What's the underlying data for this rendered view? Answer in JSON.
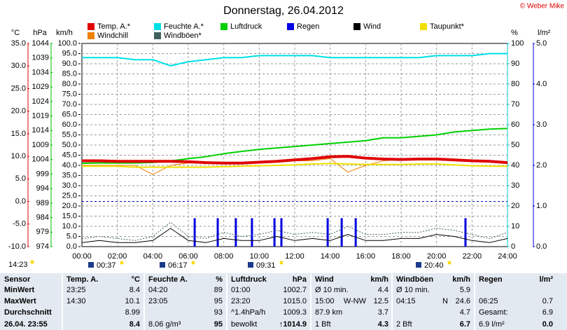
{
  "chart_data": {
    "type": "line",
    "title": "Donnerstag, 26.04.2012",
    "credit": "© Weber Mike",
    "axis_titles": {
      "y": "°C",
      "y2": "hPa",
      "y3": "km/h",
      "y4": "%",
      "y5": "l/m²"
    },
    "x": [
      0,
      1,
      2,
      3,
      4,
      5,
      6,
      7,
      8,
      9,
      10,
      11,
      12,
      13,
      14,
      15,
      16,
      17,
      18,
      19,
      20,
      21,
      22,
      23,
      24
    ],
    "xlim": [
      0,
      24
    ],
    "xticks": [
      {
        "value": 0,
        "label": "00:00"
      },
      {
        "value": 2,
        "label": "02:00"
      },
      {
        "value": 4,
        "label": "04:00"
      },
      {
        "value": 6,
        "label": "06:00"
      },
      {
        "value": 8,
        "label": "08:00"
      },
      {
        "value": 10,
        "label": "10:00"
      },
      {
        "value": 12,
        "label": "12:00"
      },
      {
        "value": 14,
        "label": "14:00"
      },
      {
        "value": 16,
        "label": "16:00"
      },
      {
        "value": 18,
        "label": "18:00"
      },
      {
        "value": 20,
        "label": "20:00"
      },
      {
        "value": 22,
        "label": "22:00"
      },
      {
        "value": 24,
        "label": "24:00"
      }
    ],
    "ylim": [
      -10,
      35
    ],
    "yticks": [
      {
        "value": 35,
        "label": "35.0"
      },
      {
        "value": 30,
        "label": "30.0"
      },
      {
        "value": 25,
        "label": "25.0"
      },
      {
        "value": 20,
        "label": "20.0"
      },
      {
        "value": 15,
        "label": "15.0"
      },
      {
        "value": 10,
        "label": "10.0"
      },
      {
        "value": 5,
        "label": "5.0"
      },
      {
        "value": 0,
        "label": "0.0"
      },
      {
        "value": -5,
        "label": "-5.0"
      },
      {
        "value": -10,
        "label": "-10.0"
      }
    ],
    "y2lim": [
      974,
      1044
    ],
    "y2ticks": [
      1044,
      1039,
      1034,
      1029,
      1024,
      1019,
      1014,
      1009,
      1004,
      999,
      994,
      989,
      984,
      979,
      974
    ],
    "y3lim": [
      0,
      100
    ],
    "y3ticks": [
      {
        "value": 100,
        "label": "100.0"
      },
      {
        "value": 95,
        "label": "95.0"
      },
      {
        "value": 90,
        "label": "90.0"
      },
      {
        "value": 85,
        "label": "85.0"
      },
      {
        "value": 80,
        "label": "80.0"
      },
      {
        "value": 75,
        "label": "75.0"
      },
      {
        "value": 70,
        "label": "70.0"
      },
      {
        "value": 65,
        "label": "65.0"
      },
      {
        "value": 60,
        "label": "60.0"
      },
      {
        "value": 55,
        "label": "55.0"
      },
      {
        "value": 50,
        "label": "50.0"
      },
      {
        "value": 45,
        "label": "45.0"
      },
      {
        "value": 40,
        "label": "40.0"
      },
      {
        "value": 35,
        "label": "35.0"
      },
      {
        "value": 30,
        "label": "30.0"
      },
      {
        "value": 25,
        "label": "25.0"
      },
      {
        "value": 20,
        "label": "20.0"
      },
      {
        "value": 15,
        "label": "15.0"
      },
      {
        "value": 10,
        "label": "10.0"
      },
      {
        "value": 5,
        "label": "5.0"
      },
      {
        "value": 0,
        "label": "0.0"
      }
    ],
    "y4lim": [
      0,
      100
    ],
    "y4ticks": [
      100,
      90,
      80,
      70,
      60,
      50,
      40,
      30,
      20,
      10,
      0
    ],
    "y5lim": [
      0,
      5
    ],
    "y5ticks": [
      {
        "value": 5,
        "label": "5.0"
      },
      {
        "value": 4,
        "label": "4.0"
      },
      {
        "value": 3,
        "label": "3.0"
      },
      {
        "value": 2,
        "label": "2.0"
      },
      {
        "value": 1,
        "label": "1.0"
      },
      {
        "value": 0,
        "label": "0.0"
      }
    ],
    "grid": true,
    "series": [
      {
        "name": "Temp. A.*",
        "color": "#e00000",
        "axis": "y",
        "values": [
          9.0,
          9.0,
          8.9,
          8.9,
          8.9,
          8.9,
          8.8,
          8.6,
          8.5,
          8.5,
          8.7,
          8.9,
          9.2,
          9.5,
          9.9,
          10.0,
          9.6,
          9.4,
          9.3,
          9.4,
          9.4,
          9.2,
          9.0,
          8.9,
          8.6
        ]
      },
      {
        "name": "Feuchte A.*",
        "color": "#00e0e8",
        "axis": "y4",
        "values": [
          93,
          93,
          93,
          92,
          92,
          89,
          91,
          92,
          93,
          93,
          94,
          94,
          94,
          94,
          93,
          93,
          93,
          93,
          93,
          93,
          94,
          94,
          94,
          95,
          95
        ]
      },
      {
        "name": "Luftdruck",
        "color": "#00d000",
        "axis": "y2",
        "values": [
          1002.7,
          1002.8,
          1002.8,
          1002.8,
          1003.0,
          1003.5,
          1004.3,
          1005.0,
          1006.0,
          1006.8,
          1007.5,
          1008.0,
          1008.5,
          1009.0,
          1009.5,
          1010.0,
          1010.5,
          1011.5,
          1011.5,
          1012.0,
          1012.5,
          1013.5,
          1014.0,
          1014.5,
          1014.7
        ]
      },
      {
        "name": "Regen",
        "color": "#0000e0",
        "axis": "y5",
        "type": "bar",
        "x": [
          6.36,
          7.66,
          8.68,
          9.59,
          10.86,
          11.25,
          13.86,
          14.65,
          15.44,
          21.63
        ],
        "values": [
          0.7,
          0.7,
          0.7,
          0.7,
          0.7,
          0.7,
          0.7,
          0.7,
          0.7,
          0.7
        ]
      },
      {
        "name": "Wind",
        "color": "#000000",
        "axis": "y3",
        "values": [
          2,
          3,
          2,
          2,
          3,
          9,
          3,
          2,
          4,
          3,
          3,
          5,
          3,
          4,
          3,
          6,
          3,
          3,
          4,
          4,
          6,
          5,
          3,
          2,
          4
        ]
      },
      {
        "name": "Taupunkt*",
        "color": "#f0e000",
        "axis": "y",
        "values": [
          7.8,
          7.8,
          7.8,
          7.6,
          7.6,
          7.6,
          7.6,
          7.6,
          7.7,
          7.8,
          7.9,
          8.0,
          8.1,
          8.3,
          8.4,
          8.3,
          8.2,
          8.2,
          8.2,
          8.3,
          8.3,
          8.1,
          7.9,
          7.8,
          7.8
        ]
      },
      {
        "name": "Windchill",
        "color": "#f08000",
        "axis": "y",
        "values": [
          8.0,
          8.0,
          8.0,
          8.0,
          6.0,
          8.0,
          8.5,
          8.5,
          8.5,
          8.5,
          8.7,
          8.9,
          9.0,
          9.0,
          9.5,
          6.5,
          8.0,
          9.0,
          9.3,
          9.4,
          9.4,
          9.2,
          9.0,
          8.9,
          8.6
        ]
      },
      {
        "name": "Windböen*",
        "color": "#406060",
        "axis": "y3",
        "values": [
          4,
          5,
          4,
          3,
          5,
          12,
          5,
          4,
          7,
          5,
          6,
          8,
          6,
          7,
          6,
          10,
          6,
          6,
          7,
          7,
          9,
          8,
          6,
          4,
          7
        ]
      }
    ],
    "annotations": [
      "14:23",
      "00:37",
      "06:17",
      "09:31",
      "20:40"
    ]
  },
  "table": {
    "header": [
      [
        "Sensor"
      ],
      [
        "Temp. A.",
        "°C"
      ],
      [
        "Feuchte A.",
        "%"
      ],
      [
        "Luftdruck",
        "hPa"
      ],
      [
        "Wind",
        "km/h"
      ],
      [
        "Windböen",
        "km/h"
      ],
      [
        "Regen",
        "l/m²"
      ]
    ],
    "rows": [
      [
        [
          "MinWert"
        ],
        [
          "23:25",
          "8.4"
        ],
        [
          "04:20",
          "89"
        ],
        [
          "01:00",
          "1002.7"
        ],
        [
          "Ø 10 min.",
          "4.4"
        ],
        [
          "Ø 10 min.",
          "5.9"
        ],
        []
      ],
      [
        [
          "MaxWert"
        ],
        [
          "14:30",
          "10.1"
        ],
        [
          "23:05",
          "95"
        ],
        [
          "23:20",
          "1015.0"
        ],
        [
          "15:00",
          "W-NW",
          "12.5"
        ],
        [
          "04:15",
          "N",
          "24.6"
        ],
        [
          "06:25",
          "0.7"
        ]
      ],
      [
        [
          "Durchschnitt"
        ],
        [
          "8.99"
        ],
        [
          "93"
        ],
        [
          "^1.4hPa/h",
          "1009.3"
        ],
        [
          "87.9 km",
          "3.7"
        ],
        [
          "4.7"
        ],
        [
          "Gesamt:",
          "6.9"
        ]
      ],
      [
        [
          "26.04. 23:55"
        ],
        [
          "8.4"
        ],
        [
          "8.06 g/m³",
          "95"
        ],
        [
          "bewolkt",
          "↑1014.9"
        ],
        [
          "1 Bft",
          "4.3"
        ],
        [
          "2 Bft",
          "6.7"
        ],
        [
          "6.9 l/m²",
          "0.0"
        ]
      ]
    ]
  }
}
